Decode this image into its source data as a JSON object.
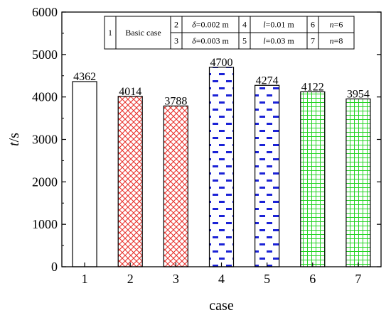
{
  "chart_data": {
    "type": "bar",
    "categories": [
      "1",
      "2",
      "3",
      "4",
      "5",
      "6",
      "7"
    ],
    "values": [
      4362,
      4014,
      3788,
      4700,
      4274,
      4122,
      3954
    ],
    "value_labels": [
      "4362",
      "4014",
      "3788",
      "4700",
      "4274",
      "4122",
      "3954"
    ],
    "xlabel": "case",
    "ylabel": "t/s",
    "ylim": [
      0,
      6000
    ],
    "yticks": [
      "0",
      "1000",
      "2000",
      "3000",
      "4000",
      "5000",
      "6000"
    ],
    "grid": false,
    "legend_placement": "top",
    "bar_styles": [
      {
        "fill": "none",
        "color": "#000000"
      },
      {
        "fill": "crosshatch",
        "color": "#e8322d"
      },
      {
        "fill": "crosshatch",
        "color": "#e8322d"
      },
      {
        "fill": "dashes",
        "color": "#1b22d6"
      },
      {
        "fill": "dashes",
        "color": "#1b22d6"
      },
      {
        "fill": "grid",
        "color": "#22d422"
      },
      {
        "fill": "grid",
        "color": "#22d422"
      }
    ],
    "legend_table": [
      [
        {
          "num": "1",
          "desc": "Basic case",
          "sym": "",
          "rest": ""
        }
      ],
      [
        {
          "num": "2",
          "sym": "δ",
          "rest": "=0.002 m"
        },
        {
          "num": "3",
          "sym": "δ",
          "rest": "=0.003 m"
        }
      ],
      [
        {
          "num": "4",
          "sym": "l",
          "rest": "=0.01 m"
        },
        {
          "num": "5",
          "sym": "l",
          "rest": "=0.03 m"
        }
      ],
      [
        {
          "num": "6",
          "sym": "n",
          "rest": "=6"
        },
        {
          "num": "7",
          "sym": "n",
          "rest": "=8"
        }
      ]
    ]
  }
}
